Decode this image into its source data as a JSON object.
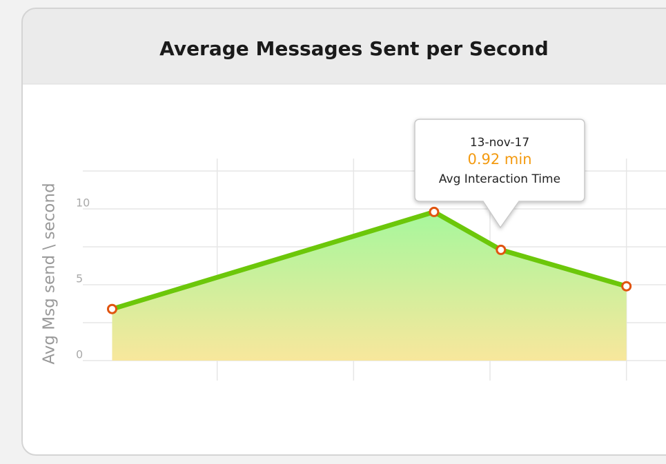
{
  "chart_data": {
    "type": "area",
    "title": "Average Messages Sent per Second",
    "y_label": "Avg Msg send \\ second",
    "x": [
      0.23,
      2.59,
      3.08,
      4.0
    ],
    "y": [
      3.4,
      9.8,
      7.3,
      4.9
    ],
    "xlim": [
      0,
      4.29
    ],
    "xgrid": [
      1,
      2,
      3,
      4
    ],
    "ylim": [
      0,
      12.5
    ],
    "yticks": [
      0,
      5,
      10
    ],
    "ygrid": [
      0,
      2.5,
      5,
      7.5,
      10,
      12.5
    ],
    "line_color": "#6cc70a",
    "fill_colors": [
      "#a6f79c",
      "#f8e79c"
    ],
    "marker_color": "#e0540f",
    "tooltip": {
      "date": "13-nov-17",
      "value": "0.92 min",
      "label": "Avg Interaction Time",
      "value_color": "#f39a10"
    }
  }
}
